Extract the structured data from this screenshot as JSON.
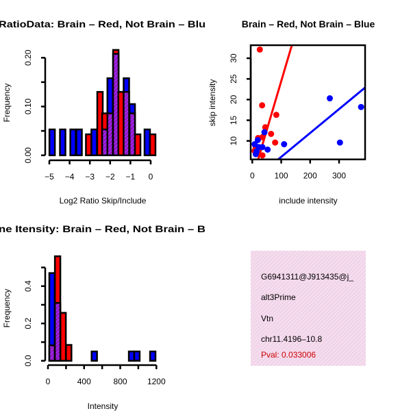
{
  "chart_data": [
    {
      "type": "bar",
      "title": "RatioData: Brain – Red, Not Brain – Blu",
      "xlabel": "Log2 Ratio Skip/Include",
      "ylabel": "Frequency",
      "xticks": [
        -5,
        -4,
        -3,
        -2,
        -1,
        0
      ],
      "xtick_labels": [
        "−5",
        "−4",
        "−3",
        "−2",
        "−1",
        "0"
      ],
      "yticks": [
        0,
        0.05,
        0.1,
        0.15,
        0.2
      ],
      "ytick_labels": [
        "0.00",
        "",
        "0.10",
        "",
        "0.20"
      ],
      "bin_width": 0.27,
      "series_names": [
        "Not Brain (blue)",
        "Brain (red)"
      ],
      "bins": [
        {
          "x": -4.86,
          "blue": 0.053,
          "red": 0
        },
        {
          "x": -4.34,
          "blue": 0.053,
          "red": 0
        },
        {
          "x": -3.83,
          "blue": 0.053,
          "red": 0
        },
        {
          "x": -3.53,
          "blue": 0.053,
          "red": 0
        },
        {
          "x": -3.06,
          "blue": 0,
          "red": 0.043
        },
        {
          "x": -2.79,
          "blue": 0.053,
          "red": 0
        },
        {
          "x": -2.5,
          "blue": 0,
          "red": 0.13
        },
        {
          "x": -2.26,
          "blue": 0.053,
          "red": 0.086
        },
        {
          "x": -2.0,
          "blue": 0.158,
          "red": 0.086
        },
        {
          "x": -1.72,
          "blue": 0.208,
          "red": 0.216
        },
        {
          "x": -1.46,
          "blue": 0,
          "red": 0.13
        },
        {
          "x": -1.2,
          "blue": 0.158,
          "red": 0.13
        },
        {
          "x": -0.91,
          "blue": 0.105,
          "red": 0.086
        },
        {
          "x": -0.64,
          "blue": 0,
          "red": 0.043
        },
        {
          "x": -0.17,
          "blue": 0.053,
          "red": 0
        },
        {
          "x": 0.1,
          "blue": 0,
          "red": 0.043
        }
      ]
    },
    {
      "type": "scatter",
      "title": "Brain – Red, Not Brain – Blue",
      "xlabel": "include intensity",
      "ylabel": "skip intensity",
      "xticks": [
        0,
        100,
        200,
        300
      ],
      "xtick_labels": [
        "0",
        "100",
        "200",
        "300"
      ],
      "yticks": [
        10,
        15,
        20,
        25,
        30
      ],
      "ytick_labels": [
        "10",
        "15",
        "20",
        "25",
        "30"
      ],
      "xlim": [
        -5,
        389
      ],
      "ylim": [
        5.5,
        33.2
      ],
      "series": [
        {
          "name": "Brain",
          "color": "#ff0000",
          "points": [
            [
              26,
              32.1
            ],
            [
              34,
              18.6
            ],
            [
              83,
              16.3
            ],
            [
              45,
              13.3
            ],
            [
              65,
              11.7
            ],
            [
              79,
              9.6
            ],
            [
              35,
              10.9
            ],
            [
              20,
              10.7
            ],
            [
              35,
              6.5
            ],
            [
              8,
              7.6
            ],
            [
              12,
              8.6
            ]
          ],
          "fit_line": [
            [
              20,
              5.5
            ],
            [
              137,
              33.2
            ]
          ]
        },
        {
          "name": "Not Brain",
          "color": "#0000ff",
          "points": [
            [
              268,
              20.3
            ],
            [
              376,
              18.2
            ],
            [
              303,
              9.6
            ],
            [
              110,
              9.2
            ],
            [
              53,
              7.9
            ],
            [
              42,
              12.1
            ],
            [
              19,
              10.2
            ],
            [
              8,
              9.2
            ],
            [
              12,
              6.8
            ],
            [
              23,
              8.5
            ],
            [
              35,
              8.5
            ],
            [
              15,
              7.5
            ]
          ],
          "fit_line": [
            [
              89,
              5.5
            ],
            [
              390,
              22.9
            ]
          ]
        }
      ]
    },
    {
      "type": "bar",
      "title": "ne Itensity: Brain – Red, Not Brain – B",
      "xlabel": "Intensity",
      "ylabel": "Frequency",
      "xticks": [
        0,
        200,
        400,
        600,
        800,
        1000,
        1200
      ],
      "xtick_labels": [
        "0",
        "",
        "400",
        "",
        "800",
        "",
        "1200"
      ],
      "yticks": [
        0,
        0.1,
        0.2,
        0.3,
        0.4,
        0.5
      ],
      "ytick_labels": [
        "0.0",
        "",
        "0.2",
        "",
        "0.4",
        ""
      ],
      "bin_width": 60,
      "series_names": [
        "Not Brain (blue)",
        "Brain (red)"
      ],
      "bins": [
        {
          "x": 45,
          "blue": 0.47,
          "red": 0.083
        },
        {
          "x": 107,
          "blue": 0.31,
          "red": 0.56
        },
        {
          "x": 168,
          "blue": 0,
          "red": 0.257
        },
        {
          "x": 230,
          "blue": 0,
          "red": 0.085
        },
        {
          "x": 513,
          "blue": 0.05,
          "red": 0
        },
        {
          "x": 925,
          "blue": 0.05,
          "red": 0
        },
        {
          "x": 985,
          "blue": 0.05,
          "red": 0
        },
        {
          "x": 1160,
          "blue": 0.05,
          "red": 0
        }
      ]
    }
  ],
  "info_panel": {
    "id": "G6941311@J913435@j_",
    "event_type": "alt3Prime",
    "gene": "Vtn",
    "location": "chr11.4196–10.8",
    "pval": "Pval: 0.033006"
  },
  "colors": {
    "blue": "#0000ff",
    "red": "#ff0000",
    "purple": "#a020f0",
    "pval": "#cc0000",
    "panel_bg": "#f6d8ee"
  }
}
